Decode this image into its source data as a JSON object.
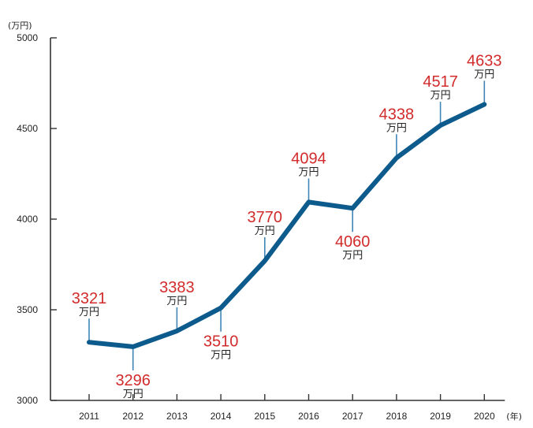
{
  "chart_data": {
    "type": "line",
    "title": "",
    "xlabel": "",
    "ylabel": "",
    "y_unit_label": "(万円)",
    "x_unit_label": "(年)",
    "data_label_unit": "万円",
    "ylim": [
      3000,
      5000
    ],
    "yticks": [
      3000,
      3500,
      4000,
      4500,
      5000
    ],
    "grid": false,
    "legend": false,
    "categories": [
      "2011",
      "2012",
      "2013",
      "2014",
      "2015",
      "2016",
      "2017",
      "2018",
      "2019",
      "2020"
    ],
    "series": [
      {
        "values": [
          3321,
          3296,
          3383,
          3510,
          3770,
          4094,
          4060,
          4338,
          4517,
          4633
        ]
      }
    ],
    "label_position": [
      "above",
      "below",
      "above",
      "below",
      "above",
      "above",
      "below",
      "above",
      "above",
      "above"
    ],
    "colors": {
      "line": "#0d5a8c",
      "leader": "#3f86b6",
      "value_text": "#d12b2b",
      "axis": "#333333"
    }
  }
}
